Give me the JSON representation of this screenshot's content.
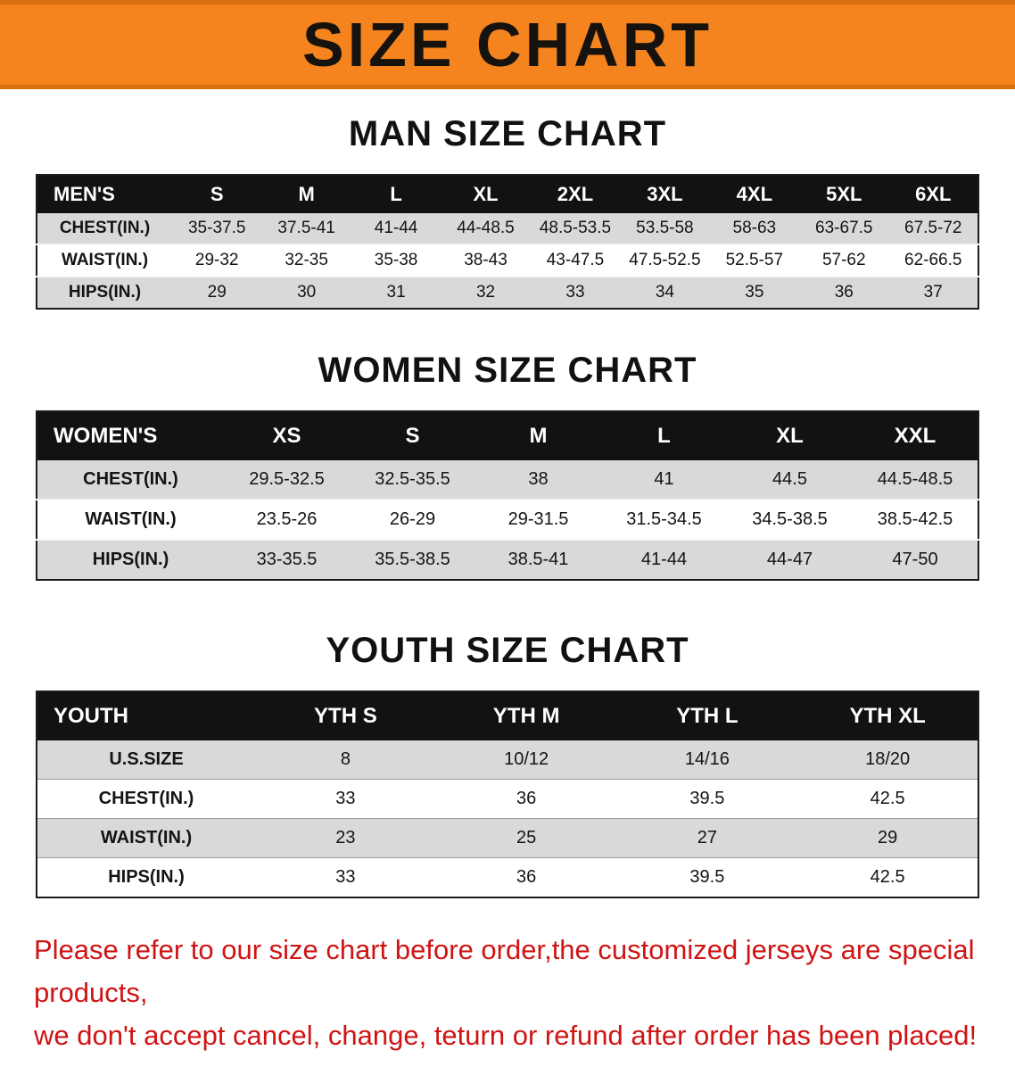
{
  "banner": {
    "title": "SIZE CHART"
  },
  "men": {
    "heading": "MAN SIZE CHART",
    "table": {
      "header": [
        "MEN'S",
        "S",
        "M",
        "L",
        "XL",
        "2XL",
        "3XL",
        "4XL",
        "5XL",
        "6XL"
      ],
      "rows": [
        [
          "CHEST(IN.)",
          "35-37.5",
          "37.5-41",
          "41-44",
          "44-48.5",
          "48.5-53.5",
          "53.5-58",
          "58-63",
          "63-67.5",
          "67.5-72"
        ],
        [
          "WAIST(IN.)",
          "29-32",
          "32-35",
          "35-38",
          "38-43",
          "43-47.5",
          "47.5-52.5",
          "52.5-57",
          "57-62",
          "62-66.5"
        ],
        [
          "HIPS(IN.)",
          "29",
          "30",
          "31",
          "32",
          "33",
          "34",
          "35",
          "36",
          "37"
        ]
      ]
    }
  },
  "women": {
    "heading": "WOMEN SIZE CHART",
    "table": {
      "header": [
        "WOMEN'S",
        "XS",
        "S",
        "M",
        "L",
        "XL",
        "XXL"
      ],
      "rows": [
        [
          "CHEST(IN.)",
          "29.5-32.5",
          "32.5-35.5",
          "38",
          "41",
          "44.5",
          "44.5-48.5"
        ],
        [
          "WAIST(IN.)",
          "23.5-26",
          "26-29",
          "29-31.5",
          "31.5-34.5",
          "34.5-38.5",
          "38.5-42.5"
        ],
        [
          "HIPS(IN.)",
          "33-35.5",
          "35.5-38.5",
          "38.5-41",
          "41-44",
          "44-47",
          "47-50"
        ]
      ]
    }
  },
  "youth": {
    "heading": "YOUTH SIZE CHART",
    "table": {
      "header": [
        "YOUTH",
        "YTH S",
        "YTH M",
        "YTH L",
        "YTH XL"
      ],
      "rows": [
        [
          "U.S.SIZE",
          "8",
          "10/12",
          "14/16",
          "18/20"
        ],
        [
          "CHEST(IN.)",
          "33",
          "36",
          "39.5",
          "42.5"
        ],
        [
          "WAIST(IN.)",
          "23",
          "25",
          "27",
          "29"
        ],
        [
          "HIPS(IN.)",
          "33",
          "36",
          "39.5",
          "42.5"
        ]
      ]
    }
  },
  "disclaimer": {
    "lines": [
      "Please refer to our size chart before order,the customized jerseys are special products,",
      "we don't accept cancel, change, teturn or refund after order has been placed!"
    ]
  },
  "colors": {
    "banner_orange": "#f5831e",
    "header_black": "#121212",
    "stripe_gray": "#d9d9d9",
    "disclaimer_red": "#cf1414"
  }
}
